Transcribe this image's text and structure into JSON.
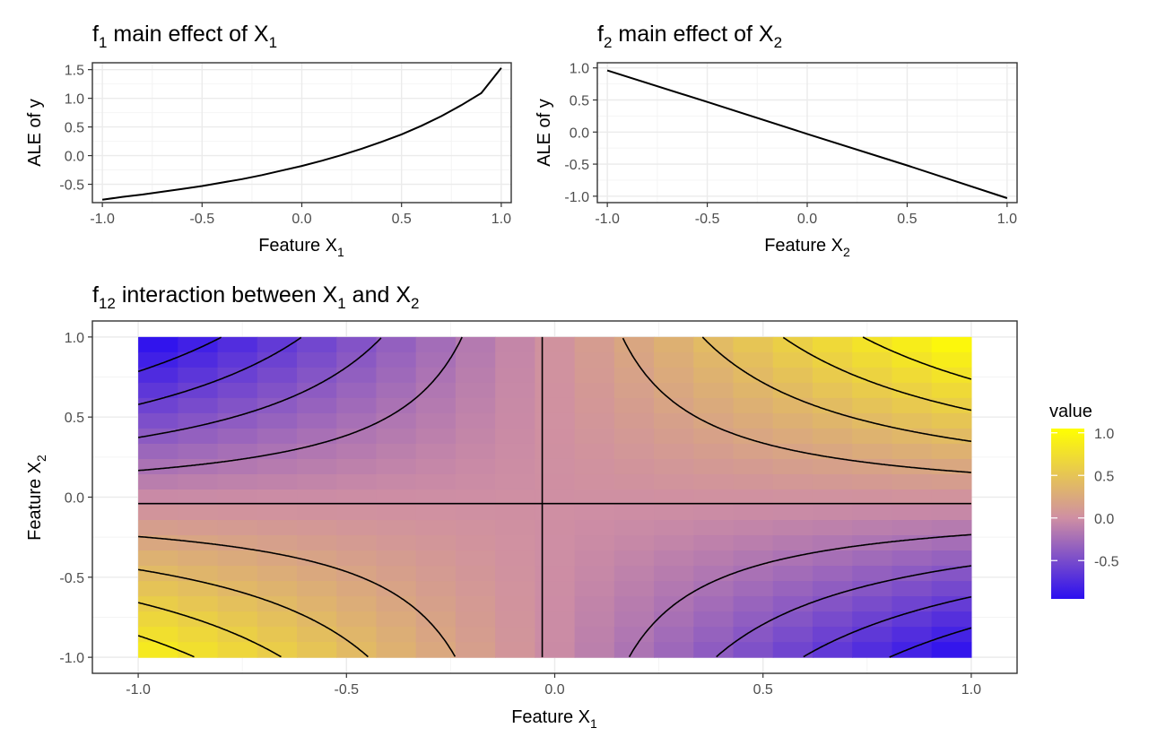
{
  "charts": {
    "f1": {
      "title": "f",
      "title_sub": "1",
      "title_rest": " main effect of X",
      "title_sub2": "1",
      "xlabel": "Feature X",
      "xlabel_sub": "1",
      "ylabel": "ALE of y",
      "x_ticks": [
        "-1.0",
        "-0.5",
        "0.0",
        "0.5",
        "1.0"
      ],
      "y_ticks": [
        "-0.5",
        "0.0",
        "0.5",
        "1.0",
        "1.5"
      ]
    },
    "f2": {
      "title": "f",
      "title_sub": "2",
      "title_rest": " main effect of X",
      "title_sub2": "2",
      "xlabel": "Feature X",
      "xlabel_sub": "2",
      "ylabel": "ALE of y",
      "x_ticks": [
        "-1.0",
        "-0.5",
        "0.0",
        "0.5",
        "1.0"
      ],
      "y_ticks": [
        "-1.0",
        "-0.5",
        "0.0",
        "0.5",
        "1.0"
      ]
    },
    "f12": {
      "title": "f",
      "title_sub": "12",
      "title_rest": " interaction between X",
      "title_sub2": "1",
      "title_and": " and X",
      "title_sub3": "2",
      "xlabel": "Feature X",
      "xlabel_sub": "1",
      "ylabel": "Feature X",
      "ylabel_sub": "2",
      "x_ticks": [
        "-1.0",
        "-0.5",
        "0.0",
        "0.5",
        "1.0"
      ],
      "y_ticks": [
        "-1.0",
        "-0.5",
        "0.0",
        "0.5",
        "1.0"
      ],
      "legend_title": "value",
      "legend_ticks": [
        "1.0",
        "0.5",
        "0.0",
        "-0.5"
      ]
    }
  },
  "colors": {
    "low": "#2b0ff0",
    "mid": "#cf8fa3",
    "high": "#ffff00",
    "line": "#000000",
    "grid_major": "#ebebeb",
    "grid_minor": "#f4f4f4",
    "panel_border": "#333333"
  },
  "chart_data": [
    {
      "type": "line",
      "x": [
        -1.0,
        -0.9,
        -0.8,
        -0.7,
        -0.6,
        -0.5,
        -0.4,
        -0.3,
        -0.2,
        -0.1,
        0.0,
        0.1,
        0.2,
        0.3,
        0.4,
        0.5,
        0.6,
        0.7,
        0.8,
        0.9,
        1.0
      ],
      "y": [
        -0.77,
        -0.72,
        -0.68,
        -0.63,
        -0.58,
        -0.53,
        -0.47,
        -0.41,
        -0.34,
        -0.26,
        -0.18,
        -0.09,
        0.01,
        0.12,
        0.24,
        0.37,
        0.52,
        0.69,
        0.88,
        1.09,
        1.53
      ],
      "xlim": [
        -1.05,
        1.05
      ],
      "ylim": [
        -0.82,
        1.62
      ],
      "grid": true
    },
    {
      "type": "line",
      "x": [
        -1.0,
        -0.5,
        0.0,
        0.5,
        1.0
      ],
      "y": [
        0.96,
        0.47,
        -0.03,
        -0.52,
        -1.03
      ],
      "xlim": [
        -1.05,
        1.05
      ],
      "ylim": [
        -1.1,
        1.08
      ],
      "grid": true
    },
    {
      "type": "heatmap",
      "x_range": [
        -1.0,
        1.0
      ],
      "y_range": [
        -1.0,
        1.0
      ],
      "xlim": [
        -1.11,
        1.11
      ],
      "ylim": [
        -1.1,
        1.1
      ],
      "grid_cells": 21,
      "value_formula": "value = (x1 + 0.03) * (x2 + 0.04)",
      "color_scale": {
        "min": -0.95,
        "max": 1.05,
        "legend_position": "right"
      },
      "contour_levels": [
        -0.8,
        -0.6,
        -0.4,
        -0.2,
        0.0,
        0.2,
        0.4,
        0.6,
        0.8
      ],
      "grid": true
    }
  ]
}
